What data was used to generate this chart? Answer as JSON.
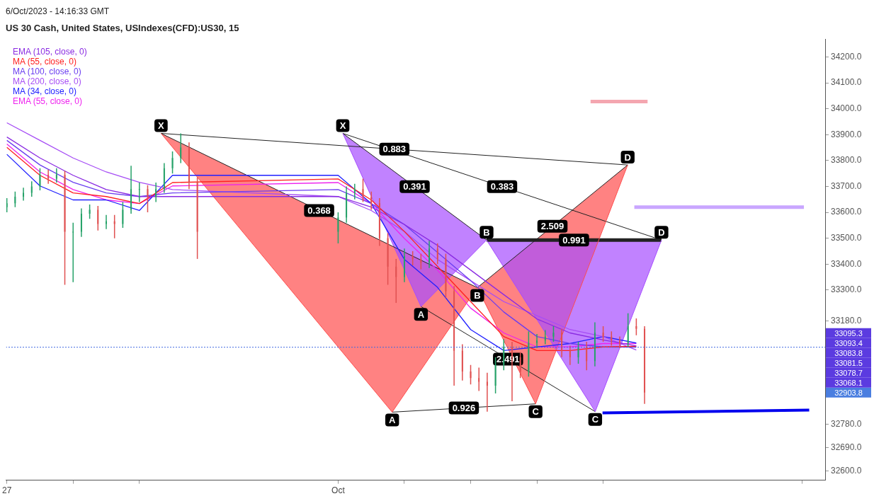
{
  "chart_data": {
    "type": "candlestick",
    "title": "US 30 Cash, United States, USIndexes(CFD):US30, 15",
    "subtitle": "6/Oct/2023 - 14:16:33 GMT",
    "x": [
      "2023-09-27T00:00",
      "2023-09-27T03:00",
      "2023-09-27T06:00",
      "2023-09-27T09:00",
      "2023-09-27T12:00",
      "2023-09-27T15:00",
      "2023-09-27T18:00",
      "2023-09-27T21:00",
      "2023-09-28T00:00",
      "2023-09-28T03:00",
      "2023-09-28T06:00",
      "2023-09-28T09:00",
      "2023-09-28T12:00",
      "2023-09-28T15:00",
      "2023-09-28T18:00",
      "2023-09-28T21:00",
      "2023-09-29T00:00",
      "2023-09-29T03:00",
      "2023-09-29T06:00",
      "2023-09-29T09:00",
      "2023-09-29T12:00",
      "2023-09-29T15:00",
      "2023-09-29T18:00",
      "2023-09-29T21:00",
      "2023-10-02T00:00",
      "2023-10-02T03:00",
      "2023-10-02T06:00",
      "2023-10-02T09:00",
      "2023-10-02T12:00",
      "2023-10-02T15:00",
      "2023-10-02T18:00",
      "2023-10-02T21:00",
      "2023-10-03T00:00",
      "2023-10-03T03:00",
      "2023-10-03T06:00",
      "2023-10-03T09:00",
      "2023-10-03T12:00",
      "2023-10-03T15:00",
      "2023-10-03T18:00",
      "2023-10-03T21:00",
      "2023-10-04T00:00",
      "2023-10-04T03:00",
      "2023-10-04T06:00",
      "2023-10-04T09:00",
      "2023-10-04T12:00",
      "2023-10-04T15:00",
      "2023-10-04T18:00",
      "2023-10-04T21:00",
      "2023-10-05T00:00",
      "2023-10-05T03:00",
      "2023-10-05T06:00",
      "2023-10-05T09:00",
      "2023-10-05T12:00",
      "2023-10-05T15:00",
      "2023-10-05T18:00",
      "2023-10-05T21:00",
      "2023-10-06T00:00",
      "2023-10-06T03:00",
      "2023-10-06T06:00",
      "2023-10-06T09:00",
      "2023-10-06T12:00",
      "2023-10-06T15:00"
    ],
    "ohlc": [
      [
        33620,
        33655,
        33600,
        33635
      ],
      [
        33635,
        33680,
        33620,
        33660
      ],
      [
        33660,
        33695,
        33645,
        33675
      ],
      [
        33675,
        33720,
        33660,
        33700
      ],
      [
        33700,
        33770,
        33685,
        33745
      ],
      [
        33745,
        33765,
        33710,
        33730
      ],
      [
        33730,
        33770,
        33715,
        33745
      ],
      [
        33745,
        33760,
        33320,
        33525
      ],
      [
        33525,
        33560,
        33330,
        33525
      ],
      [
        33525,
        33615,
        33505,
        33595
      ],
      [
        33595,
        33630,
        33575,
        33610
      ],
      [
        33610,
        33625,
        33530,
        33555
      ],
      [
        33555,
        33590,
        33535,
        33565
      ],
      [
        33565,
        33590,
        33500,
        33555
      ],
      [
        33555,
        33640,
        33540,
        33610
      ],
      [
        33610,
        33780,
        33595,
        33690
      ],
      [
        33690,
        33715,
        33640,
        33690
      ],
      [
        33690,
        33705,
        33600,
        33660
      ],
      [
        33660,
        33715,
        33640,
        33690
      ],
      [
        33690,
        33790,
        33675,
        33770
      ],
      [
        33770,
        33835,
        33750,
        33810
      ],
      [
        33810,
        33905,
        33790,
        33850
      ],
      [
        33850,
        33870,
        33690,
        33715
      ],
      [
        33715,
        33735,
        33420,
        33525
      ],
      [
        33525,
        33600,
        33480,
        33580
      ],
      [
        33580,
        33700,
        33560,
        33675
      ],
      [
        33675,
        33710,
        33650,
        33690
      ],
      [
        33690,
        33730,
        33640,
        33660
      ],
      [
        33660,
        33680,
        33610,
        33635
      ],
      [
        33635,
        33655,
        33470,
        33500
      ],
      [
        33500,
        33520,
        33320,
        33390
      ],
      [
        33390,
        33420,
        33250,
        33350
      ],
      [
        33350,
        33460,
        33330,
        33430
      ],
      [
        33430,
        33450,
        33395,
        33420
      ],
      [
        33420,
        33440,
        33380,
        33405
      ],
      [
        33405,
        33490,
        33385,
        33460
      ],
      [
        33460,
        33480,
        33400,
        33420
      ],
      [
        33420,
        33440,
        33270,
        33295
      ],
      [
        33295,
        33315,
        32930,
        33065
      ],
      [
        33065,
        33090,
        32950,
        32985
      ],
      [
        32985,
        33010,
        32935,
        32960
      ],
      [
        32960,
        33000,
        32910,
        32945
      ],
      [
        32945,
        32980,
        32830,
        32930
      ],
      [
        32930,
        33040,
        32900,
        33010
      ],
      [
        33010,
        33110,
        32990,
        33080
      ],
      [
        33080,
        33100,
        32870,
        33040
      ],
      [
        33040,
        33060,
        32960,
        32985
      ],
      [
        32985,
        33140,
        32965,
        33095
      ],
      [
        33095,
        33130,
        33075,
        33105
      ],
      [
        33105,
        33145,
        33090,
        33120
      ],
      [
        33120,
        33160,
        33100,
        33135
      ],
      [
        33135,
        33150,
        33040,
        33065
      ],
      [
        33065,
        33085,
        33010,
        33040
      ],
      [
        33040,
        33100,
        33015,
        33080
      ],
      [
        33080,
        33100,
        32990,
        33025
      ],
      [
        33025,
        33175,
        33005,
        33135
      ],
      [
        33135,
        33160,
        33100,
        33120
      ],
      [
        33120,
        33140,
        33085,
        33105
      ],
      [
        33105,
        33120,
        33075,
        33095
      ],
      [
        33095,
        33210,
        33080,
        33160
      ],
      [
        33160,
        33190,
        33125,
        33150
      ],
      [
        33150,
        33160,
        32860,
        32903.8
      ]
    ],
    "value_labels": [
      null,
      null,
      null,
      null,
      null,
      null,
      null,
      null,
      null,
      null,
      null,
      null,
      null,
      null,
      null,
      null,
      null,
      null,
      null,
      null,
      null,
      null,
      null,
      null,
      null,
      null,
      null,
      null,
      null,
      null,
      null,
      null,
      null,
      null,
      null,
      null,
      null,
      null,
      null,
      null,
      null,
      null,
      null,
      null,
      null,
      null,
      null,
      null,
      null,
      null,
      null,
      null,
      null,
      null,
      null,
      null,
      null,
      null,
      null,
      null,
      null,
      "32903.8"
    ],
    "series": [
      {
        "name": "EMA (105, close, 0)",
        "type": "line",
        "color": "#8a2be2",
        "x": [
          "2023-09-27T00:00",
          "2023-09-27T12:00",
          "2023-09-28T00:00",
          "2023-09-28T12:00",
          "2023-09-29T00:00",
          "2023-09-29T12:00",
          "2023-10-02T00:00",
          "2023-10-02T12:00",
          "2023-10-03T00:00",
          "2023-10-03T12:00",
          "2023-10-04T00:00",
          "2023-10-04T12:00",
          "2023-10-05T00:00",
          "2023-10-05T12:00",
          "2023-10-06T00:00",
          "2023-10-06T12:00"
        ],
        "values": [
          33891,
          33810,
          33743,
          33688,
          33661,
          33661,
          33661,
          33620,
          33553,
          33472,
          33377,
          33282,
          33188,
          33134,
          33107,
          33084
        ]
      },
      {
        "name": "MA (55, close, 0)",
        "type": "line",
        "color": "#ff2020",
        "x": [
          "2023-09-27T00:00",
          "2023-09-27T12:00",
          "2023-09-28T00:00",
          "2023-09-28T12:00",
          "2023-09-29T00:00",
          "2023-09-29T12:00",
          "2023-10-02T00:00",
          "2023-10-02T12:00",
          "2023-10-03T00:00",
          "2023-10-03T12:00",
          "2023-10-04T00:00",
          "2023-10-04T12:00",
          "2023-10-05T00:00",
          "2023-10-05T12:00",
          "2023-10-06T00:00",
          "2023-10-06T12:00"
        ],
        "values": [
          33851,
          33743,
          33675,
          33661,
          33634,
          33715,
          33729,
          33648,
          33526,
          33391,
          33255,
          33120,
          33066,
          33066,
          33080,
          33082
        ]
      },
      {
        "name": "MA (100, close, 0)",
        "type": "line",
        "color": "#6a3df0",
        "x": [
          "2023-09-27T00:00",
          "2023-09-27T12:00",
          "2023-09-28T00:00",
          "2023-09-28T12:00",
          "2023-09-29T00:00",
          "2023-09-29T12:00",
          "2023-10-02T00:00",
          "2023-10-02T12:00",
          "2023-10-03T00:00",
          "2023-10-03T12:00",
          "2023-10-04T00:00",
          "2023-10-04T12:00",
          "2023-10-05T00:00",
          "2023-10-05T12:00",
          "2023-10-06T00:00",
          "2023-10-06T12:00"
        ],
        "values": [
          33878,
          33783,
          33716,
          33675,
          33661,
          33675,
          33688,
          33634,
          33553,
          33445,
          33336,
          33215,
          33120,
          33093,
          33080,
          33079
        ]
      },
      {
        "name": "MA (200, close, 0)",
        "type": "line",
        "color": "#a64df5",
        "x": [
          "2023-09-27T00:00",
          "2023-09-27T12:00",
          "2023-09-28T00:00",
          "2023-09-28T12:00",
          "2023-09-29T00:00",
          "2023-09-29T12:00",
          "2023-10-02T00:00",
          "2023-10-02T12:00",
          "2023-10-03T00:00",
          "2023-10-03T12:00",
          "2023-10-04T00:00",
          "2023-10-04T12:00",
          "2023-10-05T00:00",
          "2023-10-05T12:00",
          "2023-10-06T00:00",
          "2023-10-06T12:00"
        ],
        "values": [
          33946,
          33878,
          33810,
          33756,
          33716,
          33688,
          33661,
          33607,
          33526,
          33418,
          33336,
          33255,
          33201,
          33147,
          33120,
          33068
        ]
      },
      {
        "name": "MA (34, close, 0)",
        "type": "line",
        "color": "#2020ff",
        "x": [
          "2023-09-27T00:00",
          "2023-09-27T12:00",
          "2023-09-28T00:00",
          "2023-09-28T12:00",
          "2023-09-29T00:00",
          "2023-09-29T12:00",
          "2023-10-02T00:00",
          "2023-10-02T12:00",
          "2023-10-03T00:00",
          "2023-10-03T12:00",
          "2023-10-04T00:00",
          "2023-10-04T12:00",
          "2023-10-05T00:00",
          "2023-10-05T12:00",
          "2023-10-06T00:00",
          "2023-10-06T12:00"
        ],
        "values": [
          33824,
          33702,
          33648,
          33648,
          33607,
          33743,
          33743,
          33634,
          33418,
          33310,
          33147,
          33066,
          33080,
          33093,
          33120,
          33095
        ]
      },
      {
        "name": "EMA (55, close, 0)",
        "type": "line",
        "color": "#ee22ee",
        "x": [
          "2023-09-27T00:00",
          "2023-09-27T12:00",
          "2023-09-28T00:00",
          "2023-09-28T12:00",
          "2023-09-29T00:00",
          "2023-09-29T12:00",
          "2023-10-02T00:00",
          "2023-10-02T12:00",
          "2023-10-03T00:00",
          "2023-10-03T12:00",
          "2023-10-04T00:00",
          "2023-10-04T12:00",
          "2023-10-05T00:00",
          "2023-10-05T12:00",
          "2023-10-06T00:00",
          "2023-10-06T12:00"
        ],
        "values": [
          33864,
          33756,
          33688,
          33648,
          33634,
          33702,
          33715,
          33634,
          33499,
          33377,
          33230,
          33134,
          33080,
          33080,
          33093,
          33093
        ]
      },
      {
        "type": "line",
        "color": "#ff4d4d",
        "x": [
          "2023-09-29T07:51",
          "2023-10-02T19:34",
          "2023-10-04T02:24",
          "2023-10-04T23:31",
          "2023-10-06T08:53"
        ],
        "values": [
          33905,
          32828,
          33309,
          32860,
          33783
        ]
      },
      {
        "type": "line",
        "color": "#222222",
        "x": [
          "2023-09-29T07:51",
          "2023-10-04T02:24"
        ],
        "values": [
          33905,
          33309
        ]
      },
      {
        "type": "line",
        "color": "#222222",
        "x": [
          "2023-10-04T02:24",
          "2023-10-06T08:53"
        ],
        "values": [
          33309,
          33783
        ]
      },
      {
        "type": "line",
        "color": "#222222",
        "x": [
          "2023-09-29T07:51",
          "2023-10-06T08:53"
        ],
        "values": [
          33905,
          33783
        ]
      },
      {
        "type": "line",
        "color": "#222222",
        "x": [
          "2023-10-02T19:34",
          "2023-10-04T23:31"
        ],
        "values": [
          32828,
          32860
        ]
      },
      {
        "type": "line",
        "color": "#a64dff",
        "x": [
          "2023-10-02T01:41",
          "2023-10-03T06:00",
          "2023-10-04T05:46",
          "2023-10-05T21:07",
          "2023-10-06T21:07"
        ],
        "values": [
          33905,
          33236,
          33493,
          32830,
          33493
        ]
      },
      {
        "type": "line",
        "color": "#222222",
        "x": [
          "2023-10-02T01:41",
          "2023-10-04T05:46"
        ],
        "values": [
          33905,
          33493
        ]
      },
      {
        "type": "line",
        "color": "#222222",
        "x": [
          "2023-10-04T05:46",
          "2023-10-06T21:07"
        ],
        "values": [
          33493,
          33493
        ]
      },
      {
        "type": "line",
        "color": "#222222",
        "x": [
          "2023-10-02T01:41",
          "2023-10-06T21:07"
        ],
        "values": [
          33905,
          33493
        ]
      },
      {
        "type": "line",
        "color": "#222222",
        "x": [
          "2023-10-03T06:00",
          "2023-10-05T21:07"
        ],
        "values": [
          33236,
          32830
        ]
      },
      {
        "type": "line",
        "color": "#0000ee",
        "x": [
          "2023-10-05T23:46",
          "2023-10-09T02:38"
        ],
        "values": [
          32825,
          32836
        ]
      },
      {
        "type": "line",
        "color": "#f4a6b0",
        "x": [
          "2023-10-05T19:26",
          "2023-10-06T16:05"
        ],
        "values": [
          34028,
          34028
        ]
      },
      {
        "type": "line",
        "color": "#c9a6ff",
        "x": [
          "2023-10-06T11:17",
          "2023-10-09T00:43"
        ],
        "values": [
          33620,
          33620
        ]
      }
    ],
    "ref_lines": [
      {
        "axis": "y",
        "value": 33078.7,
        "color": "#4169e1",
        "line_style": "dotted"
      }
    ],
    "annotations": [
      {
        "text": "X",
        "x": "2023-09-29T07:51",
        "y": 33905
      },
      {
        "text": "A",
        "x": "2023-10-02T19:34",
        "y": 32828
      },
      {
        "text": "B",
        "x": "2023-10-04T02:24",
        "y": 33309
      },
      {
        "text": "C",
        "x": "2023-10-04T23:31",
        "y": 32860
      },
      {
        "text": "D",
        "x": "2023-10-06T08:53",
        "y": 33783
      },
      {
        "text": "X",
        "x": "2023-10-02T01:41",
        "y": 33905
      },
      {
        "text": "A",
        "x": "2023-10-03T06:00",
        "y": 33236
      },
      {
        "text": "B",
        "x": "2023-10-04T05:46",
        "y": 33493
      },
      {
        "text": "C",
        "x": "2023-10-05T21:07",
        "y": 32830
      },
      {
        "text": "D",
        "x": "2023-10-06T21:07",
        "y": 33493
      },
      {
        "text": "0.883",
        "x": "2023-10-02T20:22",
        "y": 33844
      },
      {
        "text": "0.391",
        "x": "2023-10-03T03:43",
        "y": 33699
      },
      {
        "text": "0.383",
        "x": "2023-10-04T11:24",
        "y": 33699
      },
      {
        "text": "0.368",
        "x": "2023-10-01T17:07",
        "y": 33607
      },
      {
        "text": "2.509",
        "x": "2023-10-05T05:38",
        "y": 33546
      },
      {
        "text": "0.991",
        "x": "2023-10-05T13:26",
        "y": 33493
      },
      {
        "text": "0.926",
        "x": "2023-10-03T21:32",
        "y": 32844
      },
      {
        "text": "2.491",
        "x": "2023-10-04T13:33",
        "y": 33033
      },
      "33095.3",
      "33093.4",
      "33083.8",
      "33081.5",
      "33078.7",
      "33068.1"
    ],
    "xlim": [
      "2023-09-26T23:46",
      "2023-10-09T08:24"
    ],
    "xticks": [
      {
        "value": "2023-09-27",
        "label": "27"
      },
      {
        "value": "2023-09-28",
        "label": null
      },
      {
        "value": "2023-09-29",
        "label": null
      },
      {
        "value": "2023-10-02",
        "label": "Oct"
      },
      {
        "value": "2023-10-03",
        "label": null
      },
      {
        "value": "2023-10-04",
        "label": null
      },
      {
        "value": "2023-10-05",
        "label": null
      },
      {
        "value": "2023-10-06",
        "label": null
      },
      {
        "value": "2023-10-09",
        "label": null
      }
    ],
    "ylim": [
      32565,
      34270
    ],
    "yticks": [
      {
        "value": 32600,
        "label": "32600.0"
      },
      {
        "value": 32690,
        "label": "32690.0"
      },
      {
        "value": 32780,
        "label": "32780.0"
      },
      {
        "value": 33180,
        "label": "33180.0"
      },
      {
        "value": 33300,
        "label": "33300.0"
      },
      {
        "value": 33400,
        "label": "33400.0"
      },
      {
        "value": 33500,
        "label": "33500.0"
      },
      {
        "value": 33600,
        "label": "33600.0"
      },
      {
        "value": 33700,
        "label": "33700.0"
      },
      {
        "value": 33800,
        "label": "33800.0"
      },
      {
        "value": 33900,
        "label": "33900.0"
      },
      {
        "value": 34000,
        "label": "34000.0"
      },
      {
        "value": 34100,
        "label": "34100.0"
      },
      {
        "value": 34200,
        "label": "34200.0"
      }
    ],
    "legend": "top left"
  }
}
